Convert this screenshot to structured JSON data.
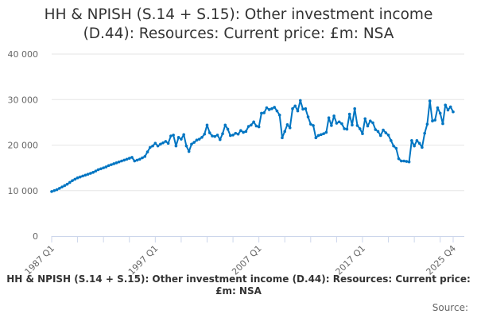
{
  "chart_data": {
    "type": "line",
    "title_line1": "HH & NPISH (S.14 + S.15): Other investment income",
    "title_line2": "(D.44): Resources: Current price: £m: NSA",
    "series_name": "HH & NPISH (S.14 + S.15): Other investment income (D.44): Resources: Current price: £m: NSA",
    "source_label": "Source:",
    "start_year": 1987,
    "ylim": [
      0,
      40000
    ],
    "yticks": [
      {
        "v": 0,
        "label": "0"
      },
      {
        "v": 10000,
        "label": "10 000"
      },
      {
        "v": 20000,
        "label": "20 000"
      },
      {
        "v": 30000,
        "label": "30 000"
      },
      {
        "v": 40000,
        "label": "40 000"
      }
    ],
    "xlabels": [
      {
        "q": 0,
        "label": "1987 Q1"
      },
      {
        "q": 40,
        "label": "1997 Q1"
      },
      {
        "q": 80,
        "label": "2007 Q1"
      },
      {
        "q": 120,
        "label": "2017 Q1"
      },
      {
        "q": 155,
        "label": "2025 Q4"
      }
    ],
    "color": "#0075c2",
    "values": [
      9800,
      10000,
      10200,
      10500,
      10800,
      11100,
      11400,
      11800,
      12200,
      12500,
      12800,
      13000,
      13200,
      13400,
      13600,
      13800,
      14000,
      14300,
      14600,
      14800,
      15000,
      15200,
      15500,
      15700,
      15900,
      16100,
      16300,
      16500,
      16700,
      16900,
      17100,
      17300,
      16500,
      16700,
      16900,
      17200,
      17500,
      18500,
      19500,
      19800,
      20400,
      19800,
      20200,
      20500,
      20800,
      20400,
      22000,
      22200,
      19800,
      21700,
      21300,
      22300,
      19800,
      18600,
      20200,
      20600,
      21100,
      21300,
      21700,
      22400,
      24400,
      22700,
      22000,
      21900,
      22200,
      21200,
      22500,
      24400,
      23500,
      22100,
      22200,
      22600,
      22400,
      23200,
      22800,
      23000,
      24100,
      24400,
      25100,
      24200,
      24000,
      27000,
      27100,
      28200,
      27800,
      28000,
      28300,
      27500,
      26600,
      21600,
      23000,
      24500,
      23800,
      28000,
      28600,
      27500,
      29800,
      27900,
      28000,
      26200,
      24600,
      24300,
      21600,
      22100,
      22300,
      22500,
      22800,
      26000,
      24300,
      26400,
      24800,
      25100,
      24700,
      23600,
      23500,
      26800,
      24400,
      28000,
      24300,
      23600,
      22500,
      25800,
      24200,
      25300,
      24900,
      23400,
      23000,
      22100,
      23300,
      22700,
      22200,
      21000,
      19800,
      19300,
      17000,
      16500,
      16500,
      16400,
      16300,
      21000,
      19800,
      21000,
      20400,
      19500,
      22600,
      24600,
      29700,
      25300,
      25500,
      28200,
      27000,
      24700,
      28800,
      27700,
      28400,
      27300
    ]
  }
}
